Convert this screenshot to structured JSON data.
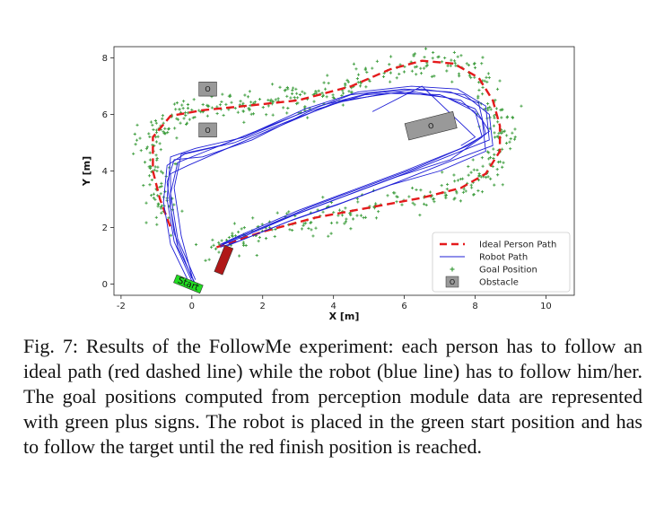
{
  "caption": "Fig. 7: Results of the FollowMe experiment: each person has to follow an ideal path (red dashed line) while the robot (blue line) has to follow him/her. The goal positions computed from perception module data are represented with green plus signs. The robot is placed in the green start position and has to follow the target until the red finish position is reached.",
  "chart_data": {
    "type": "line",
    "xlabel": "X [m]",
    "ylabel": "Y [m]",
    "xlim": [
      -2.2,
      10.8
    ],
    "ylim": [
      -0.4,
      8.4
    ],
    "xticks": [
      "-2",
      "0",
      "2",
      "4",
      "6",
      "8",
      "10"
    ],
    "yticks": [
      "0",
      "2",
      "4",
      "6",
      "8"
    ],
    "grid": false,
    "legend_position": "bottom-right",
    "legend": [
      "Ideal Person Path",
      "Robot Path",
      "Goal Position",
      "Obstacle"
    ],
    "colors": {
      "ideal": "#e41a1c",
      "robot": "#1f1fd6",
      "goal": "#3f9e3f",
      "obstacle": "#999999",
      "start": "#22dd22",
      "finish": "#b01818"
    },
    "ideal_path": [
      [
        0.7,
        1.3
      ],
      [
        2.0,
        1.85
      ],
      [
        3.5,
        2.35
      ],
      [
        5.0,
        2.7
      ],
      [
        6.5,
        3.05
      ],
      [
        7.6,
        3.4
      ],
      [
        8.3,
        3.9
      ],
      [
        8.7,
        4.7
      ],
      [
        8.7,
        5.6
      ],
      [
        8.5,
        6.5
      ],
      [
        8.1,
        7.3
      ],
      [
        7.4,
        7.8
      ],
      [
        6.5,
        7.9
      ],
      [
        5.6,
        7.6
      ],
      [
        4.5,
        7.0
      ],
      [
        3.0,
        6.5
      ],
      [
        1.5,
        6.3
      ],
      [
        0.3,
        6.15
      ],
      [
        -0.6,
        5.95
      ],
      [
        -1.1,
        5.2
      ],
      [
        -1.1,
        4.0
      ],
      [
        -0.9,
        3.0
      ],
      [
        -0.6,
        2.0
      ]
    ],
    "robot_runs": [
      [
        [
          0.0,
          0.1
        ],
        [
          -0.5,
          1.5
        ],
        [
          -0.7,
          3.0
        ],
        [
          -0.6,
          4.5
        ],
        [
          0.1,
          4.8
        ],
        [
          1.5,
          5.2
        ],
        [
          3.0,
          6.0
        ],
        [
          4.5,
          6.7
        ],
        [
          6.0,
          6.9
        ],
        [
          7.3,
          6.8
        ],
        [
          8.1,
          6.4
        ],
        [
          8.3,
          5.3
        ],
        [
          7.6,
          4.8
        ],
        [
          6.0,
          4.0
        ],
        [
          4.5,
          3.3
        ],
        [
          3.0,
          2.6
        ],
        [
          1.5,
          1.8
        ],
        [
          0.8,
          1.4
        ]
      ],
      [
        [
          0.1,
          0.15
        ],
        [
          -0.4,
          1.6
        ],
        [
          -0.6,
          3.2
        ],
        [
          -0.4,
          4.3
        ],
        [
          0.4,
          4.7
        ],
        [
          1.8,
          5.4
        ],
        [
          3.2,
          6.2
        ],
        [
          4.7,
          6.8
        ],
        [
          6.2,
          7.0
        ],
        [
          7.5,
          6.9
        ],
        [
          8.3,
          6.3
        ],
        [
          8.4,
          5.1
        ],
        [
          7.4,
          4.6
        ],
        [
          6.0,
          3.9
        ],
        [
          4.5,
          3.2
        ],
        [
          3.0,
          2.5
        ],
        [
          1.5,
          1.7
        ],
        [
          0.8,
          1.35
        ]
      ],
      [
        [
          -0.1,
          0.1
        ],
        [
          -0.6,
          1.4
        ],
        [
          -0.8,
          2.9
        ],
        [
          -0.7,
          4.2
        ],
        [
          -0.2,
          4.6
        ],
        [
          1.2,
          5.0
        ],
        [
          2.8,
          5.8
        ],
        [
          4.3,
          6.5
        ],
        [
          5.9,
          6.8
        ],
        [
          7.2,
          6.6
        ],
        [
          8.0,
          6.1
        ],
        [
          8.2,
          5.2
        ],
        [
          7.3,
          4.4
        ],
        [
          5.8,
          3.8
        ],
        [
          4.3,
          3.1
        ],
        [
          2.8,
          2.4
        ],
        [
          1.4,
          1.7
        ],
        [
          0.85,
          1.4
        ]
      ],
      [
        [
          0.05,
          0.05
        ],
        [
          -0.3,
          1.7
        ],
        [
          -0.5,
          3.4
        ],
        [
          -0.3,
          4.6
        ],
        [
          0.8,
          4.9
        ],
        [
          2.2,
          5.6
        ],
        [
          3.6,
          6.3
        ],
        [
          5.0,
          6.75
        ],
        [
          6.5,
          6.9
        ],
        [
          7.7,
          6.7
        ],
        [
          8.4,
          6.0
        ],
        [
          8.5,
          4.9
        ],
        [
          7.2,
          4.3
        ],
        [
          5.8,
          3.6
        ],
        [
          4.3,
          2.9
        ],
        [
          2.9,
          2.3
        ],
        [
          1.5,
          1.6
        ],
        [
          0.9,
          1.3
        ]
      ],
      [
        [
          0.0,
          0.2
        ],
        [
          -0.5,
          1.8
        ],
        [
          -0.7,
          3.6
        ],
        [
          -0.5,
          4.4
        ],
        [
          0.3,
          4.5
        ],
        [
          1.7,
          5.1
        ],
        [
          3.3,
          6.1
        ],
        [
          4.9,
          6.7
        ],
        [
          6.3,
          6.8
        ],
        [
          7.6,
          6.5
        ],
        [
          8.2,
          5.8
        ],
        [
          8.3,
          4.7
        ],
        [
          7.0,
          4.0
        ],
        [
          5.6,
          3.5
        ],
        [
          4.1,
          2.8
        ],
        [
          2.7,
          2.2
        ],
        [
          1.4,
          1.55
        ],
        [
          0.8,
          1.3
        ]
      ],
      [
        [
          0.1,
          0.0
        ],
        [
          -0.4,
          1.3
        ],
        [
          -0.6,
          2.7
        ],
        [
          -0.6,
          3.9
        ],
        [
          -0.1,
          4.2
        ],
        [
          1.0,
          4.8
        ],
        [
          2.5,
          5.6
        ],
        [
          4.0,
          6.4
        ],
        [
          5.5,
          6.75
        ],
        [
          7.0,
          6.7
        ],
        [
          8.0,
          6.2
        ],
        [
          8.4,
          5.4
        ],
        [
          7.8,
          4.9
        ],
        [
          6.3,
          4.1
        ],
        [
          4.8,
          3.4
        ],
        [
          3.3,
          2.7
        ],
        [
          1.8,
          1.9
        ],
        [
          0.9,
          1.45
        ]
      ]
    ],
    "robot_spike": [
      [
        5.1,
        6.1
      ],
      [
        6.5,
        7.0
      ],
      [
        8.0,
        5.2
      ],
      [
        7.6,
        4.9
      ]
    ],
    "goal_seed": 7,
    "goal_count": 620,
    "goal_spread": 0.45,
    "obstacles": [
      {
        "label": "O",
        "x": 0.45,
        "y": 6.9,
        "w": 0.5,
        "h": 0.5,
        "angle": 0
      },
      {
        "label": "O",
        "x": 0.45,
        "y": 5.45,
        "w": 0.5,
        "h": 0.5,
        "angle": 0
      },
      {
        "label": "O",
        "x": 6.75,
        "y": 5.6,
        "w": 1.4,
        "h": 0.6,
        "angle": -14
      }
    ],
    "start": {
      "label": "Start",
      "x": -0.1,
      "y": 0.0,
      "w": 0.8,
      "h": 0.3,
      "angle": 22
    },
    "finish": {
      "label": "",
      "x": 0.9,
      "y": 0.85,
      "w": 0.25,
      "h": 1.0,
      "angle": 22
    }
  }
}
